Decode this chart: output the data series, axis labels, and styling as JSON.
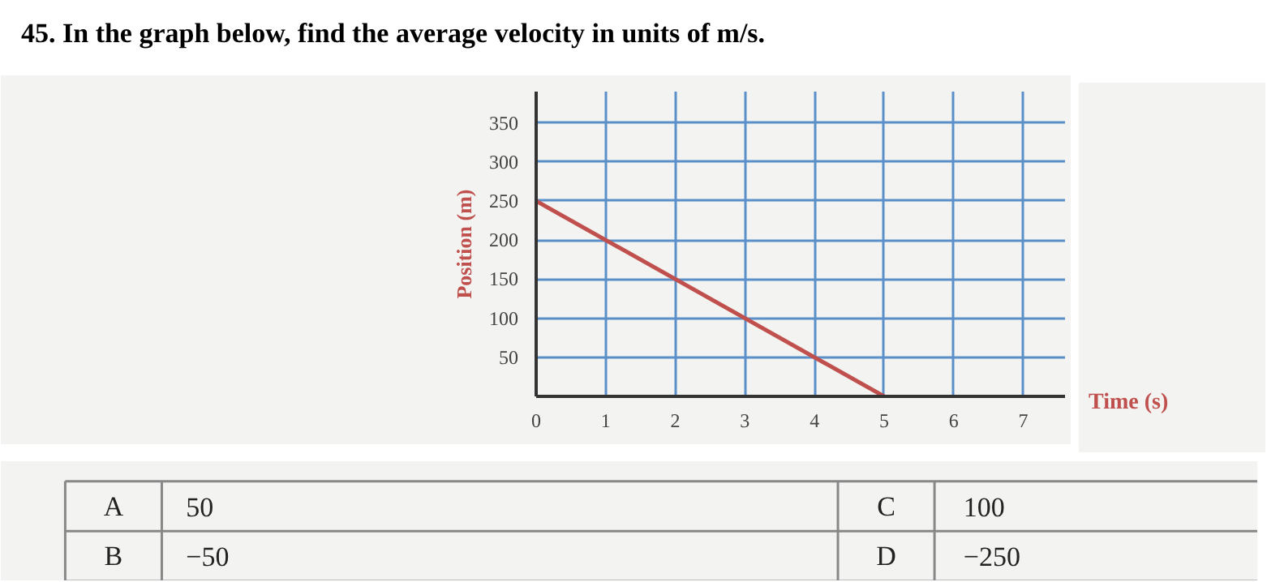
{
  "chart_data": {
    "type": "line",
    "title": "45. In the graph below, find the average velocity in units of m/s.",
    "xlabel": "Time (s)",
    "ylabel": "Position (m)",
    "x": [
      0,
      5
    ],
    "series": [
      {
        "color": "#c0504d",
        "values": [
          250,
          0
        ]
      }
    ],
    "xlim": [
      0,
      7.6
    ],
    "ylim": [
      0,
      390
    ],
    "xticks": [
      0,
      1,
      2,
      3,
      4,
      5,
      6,
      7
    ],
    "yticks": [
      50,
      100,
      150,
      200,
      250,
      300,
      350
    ],
    "grid": true,
    "marker": "none",
    "line_style": "solid",
    "annotations": [
      "A",
      "50",
      "B",
      "−50",
      "C",
      "100",
      "D",
      "−250"
    ]
  }
}
